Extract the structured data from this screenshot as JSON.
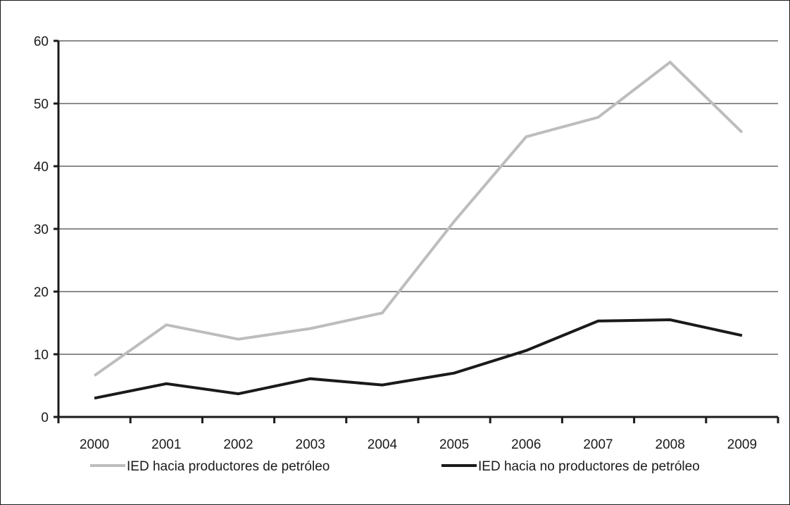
{
  "chart_data": {
    "type": "line",
    "title": "",
    "xlabel": "",
    "ylabel": "",
    "x": [
      "2000",
      "2001",
      "2002",
      "2003",
      "2004",
      "2005",
      "2006",
      "2007",
      "2008",
      "2009"
    ],
    "ylim": [
      0,
      60
    ],
    "yticks": [
      0,
      10,
      20,
      30,
      40,
      50,
      60
    ],
    "grid": "horizontal",
    "legend_position": "bottom",
    "series": [
      {
        "name": "IED hacia productores de petróleo",
        "color": "#bdbdbd",
        "values": [
          6.6,
          14.7,
          12.4,
          14.1,
          16.6,
          31.2,
          44.7,
          47.8,
          56.6,
          45.4
        ]
      },
      {
        "name": "IED hacia no productores de petróleo",
        "color": "#1a1a1a",
        "values": [
          3.0,
          5.3,
          3.7,
          6.1,
          5.1,
          7.0,
          10.6,
          15.3,
          15.5,
          13.0
        ]
      }
    ]
  }
}
